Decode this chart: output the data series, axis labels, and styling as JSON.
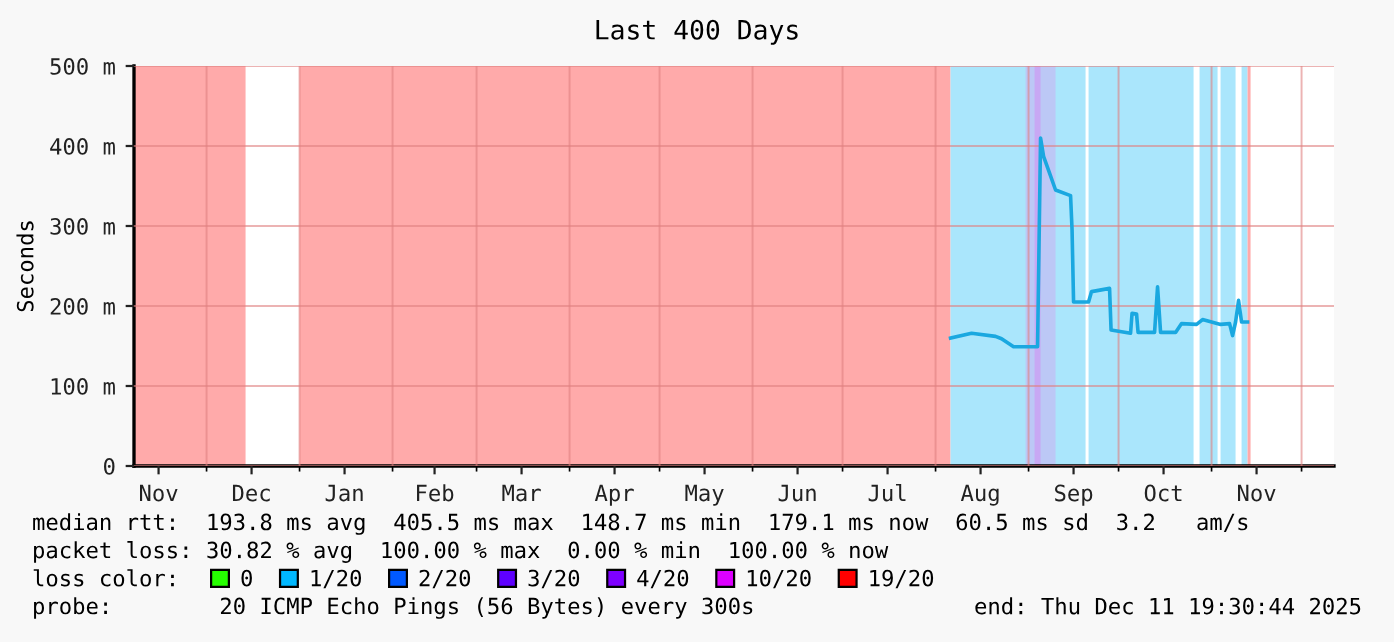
{
  "chart_data": {
    "type": "line",
    "title": "Last 400 Days",
    "ylabel": "Seconds",
    "xlim": [
      "2024-11-06T19:30",
      "2025-12-11T19:30"
    ],
    "xticks": [
      {
        "value": "2024-11-15",
        "label": "Nov"
      },
      {
        "value": "2024-12-01",
        "label": null
      },
      {
        "value": "2024-12-16",
        "label": "Dec"
      },
      {
        "value": "2025-01-01",
        "label": null
      },
      {
        "value": "2025-01-16",
        "label": "Jan"
      },
      {
        "value": "2025-02-01",
        "label": null
      },
      {
        "value": "2025-02-15",
        "label": "Feb"
      },
      {
        "value": "2025-03-01",
        "label": null
      },
      {
        "value": "2025-03-16",
        "label": "Mar"
      },
      {
        "value": "2025-04-01",
        "label": null
      },
      {
        "value": "2025-04-16",
        "label": "Apr"
      },
      {
        "value": "2025-05-01",
        "label": null
      },
      {
        "value": "2025-05-16",
        "label": "May"
      },
      {
        "value": "2025-06-01",
        "label": null
      },
      {
        "value": "2025-06-16",
        "label": "Jun"
      },
      {
        "value": "2025-07-01",
        "label": null
      },
      {
        "value": "2025-07-16",
        "label": "Jul"
      },
      {
        "value": "2025-08-01",
        "label": null
      },
      {
        "value": "2025-08-16",
        "label": "Aug"
      },
      {
        "value": "2025-09-01",
        "label": null
      },
      {
        "value": "2025-09-16",
        "label": "Sep"
      },
      {
        "value": "2025-10-01",
        "label": null
      },
      {
        "value": "2025-10-16",
        "label": "Oct"
      },
      {
        "value": "2025-11-01",
        "label": null
      },
      {
        "value": "2025-11-16",
        "label": "Nov"
      },
      {
        "value": "2025-12-01",
        "label": null
      }
    ],
    "ylim": [
      0,
      500
    ],
    "yticks": [
      0,
      {
        "value": 100,
        "label": "100 m"
      },
      {
        "value": 200,
        "label": "200 m"
      },
      {
        "value": 300,
        "label": "300 m"
      },
      {
        "value": 400,
        "label": "400 m"
      },
      {
        "value": 500,
        "label": "500 m"
      }
    ],
    "grid": true,
    "legend": "bottom",
    "legend_title": "loss color:",
    "marker": "none",
    "line_style": "solid",
    "bands": [
      {
        "axis": "x",
        "from": "2024-11-06T19:30",
        "to": "2024-12-14",
        "color": "#ffaaaa"
      },
      {
        "axis": "x",
        "from": "2025-01-01",
        "to": "2025-08-06",
        "color": "#ffaaaa"
      },
      {
        "axis": "x",
        "from": "2025-08-06",
        "to": "2025-09-20",
        "color": "#aae6fc"
      },
      {
        "axis": "x",
        "from": "2025-09-21",
        "to": "2025-10-26",
        "color": "#aae6fc"
      },
      {
        "axis": "x",
        "from": "2025-10-28",
        "to": "2025-11-03",
        "color": "#aae6fc"
      },
      {
        "axis": "x",
        "from": "2025-11-04",
        "to": "2025-11-09",
        "color": "#aae6fc"
      },
      {
        "axis": "x",
        "from": "2025-11-11",
        "to": "2025-11-13",
        "color": "#aae6fc"
      },
      {
        "axis": "x",
        "from": "2025-11-13",
        "to": "2025-11-14",
        "color": "#ffaaaa"
      },
      {
        "axis": "x",
        "from": "2025-08-31",
        "to": "2025-09-10",
        "color": "#bcc8f6"
      },
      {
        "axis": "x",
        "from": "2025-09-03",
        "to": "2025-09-05",
        "color": "#c8a8f4"
      }
    ],
    "series": [
      {
        "color": "#1aa8e0",
        "x": [
          "2025-08-06",
          "2025-08-13",
          "2025-08-21",
          "2025-08-23",
          "2025-08-27",
          "2025-09-04",
          "2025-09-05",
          "2025-09-06",
          "2025-09-08",
          "2025-09-10",
          "2025-09-15",
          "2025-09-15T12:00",
          "2025-09-16",
          "2025-09-21",
          "2025-09-22",
          "2025-09-28",
          "2025-09-28T12:00",
          "2025-10-05",
          "2025-10-05T12:00",
          "2025-10-07",
          "2025-10-07T12:00",
          "2025-10-13",
          "2025-10-14",
          "2025-10-15",
          "2025-10-20",
          "2025-10-22",
          "2025-10-27",
          "2025-10-29",
          "2025-11-04",
          "2025-11-07",
          "2025-11-08",
          "2025-11-09",
          "2025-11-10",
          "2025-11-11",
          "2025-11-13"
        ],
        "values": [
          160,
          166,
          162,
          159,
          149,
          149,
          410,
          387,
          366,
          345,
          338,
          295,
          205,
          205,
          218,
          222,
          170,
          166,
          191,
          190,
          167,
          167,
          224,
          167,
          167,
          178,
          177,
          183,
          177,
          178,
          163,
          180,
          207,
          180,
          180
        ]
      },
      {
        "name": "0",
        "color": "#26ff00"
      },
      {
        "name": "1/20",
        "color": "#00b8ff"
      },
      {
        "name": "2/20",
        "color": "#0059ff"
      },
      {
        "name": "3/20",
        "color": "#5e00ff"
      },
      {
        "name": "4/20",
        "color": "#7e00ff"
      },
      {
        "name": "10/20",
        "color": "#dd00ff"
      },
      {
        "name": "19/20",
        "color": "#ff0000"
      }
    ],
    "annotations": [
      "median rtt:  193.8 ms avg  405.5 ms max  148.7 ms min  179.1 ms now  60.5 ms sd  3.2   am/s",
      "packet loss: 30.82 % avg  100.00 % max  0.00 % min  100.00 % now",
      "probe:        20 ICMP Echo Pings (56 Bytes) every 300s",
      "end: Thu Dec 11 19:30:44 2025"
    ]
  }
}
